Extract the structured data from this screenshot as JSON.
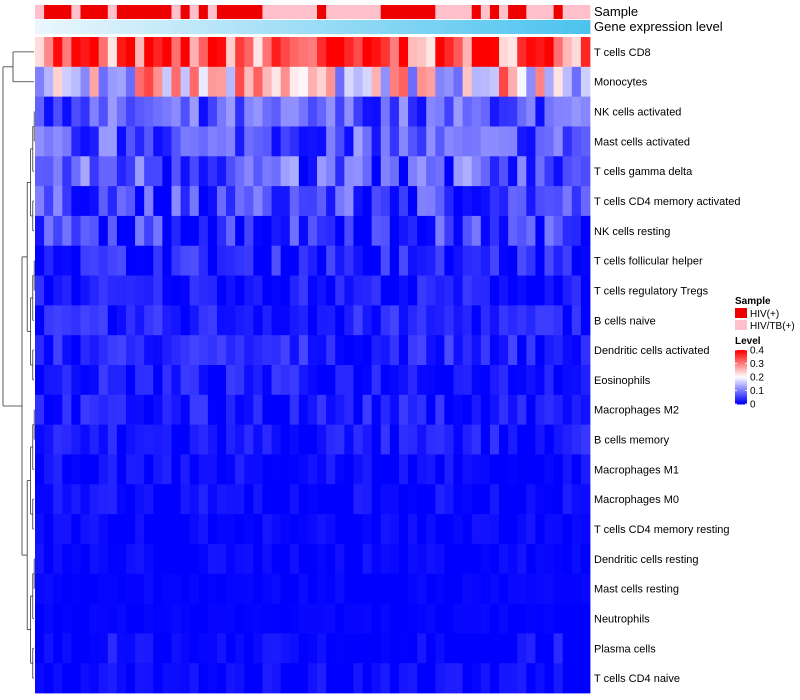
{
  "chart_data": {
    "type": "heatmap",
    "title": "",
    "annotation_tracks": [
      {
        "name": "Sample",
        "values": [
          "HIV/TB(+)",
          "HIV(+)",
          "HIV(+)",
          "HIV(+)",
          "HIV/TB(+)",
          "HIV(+)",
          "HIV(+)",
          "HIV(+)",
          "HIV/TB(+)",
          "HIV(+)",
          "HIV(+)",
          "HIV(+)",
          "HIV(+)",
          "HIV(+)",
          "HIV(+)",
          "HIV/TB(+)",
          "HIV(+)",
          "HIV/TB(+)",
          "HIV(+)",
          "HIV/TB(+)",
          "HIV(+)",
          "HIV(+)",
          "HIV(+)",
          "HIV(+)",
          "HIV(+)",
          "HIV/TB(+)",
          "HIV/TB(+)",
          "HIV/TB(+)",
          "HIV/TB(+)",
          "HIV/TB(+)",
          "HIV/TB(+)",
          "HIV(+)",
          "HIV/TB(+)",
          "HIV/TB(+)",
          "HIV/TB(+)",
          "HIV/TB(+)",
          "HIV/TB(+)",
          "HIV/TB(+)",
          "HIV(+)",
          "HIV(+)",
          "HIV(+)",
          "HIV(+)",
          "HIV(+)",
          "HIV(+)",
          "HIV/TB(+)",
          "HIV/TB(+)",
          "HIV/TB(+)",
          "HIV/TB(+)",
          "HIV(+)",
          "HIV/TB(+)",
          "HIV(+)",
          "HIV/TB(+)",
          "HIV(+)",
          "HIV(+)",
          "HIV/TB(+)",
          "HIV/TB(+)",
          "HIV/TB(+)",
          "HIV(+)",
          "HIV/TB(+)",
          "HIV/TB(+)",
          "HIV/TB(+)"
        ]
      },
      {
        "name": "Gene expression level",
        "gradient": [
          "#eaf6fc",
          "#4cc3ef"
        ]
      }
    ],
    "rows": [
      "T cells CD8",
      "Monocytes",
      "NK cells activated",
      "Mast cells activated",
      "T cells gamma delta",
      "T cells CD4 memory activated",
      "NK cells resting",
      "T cells follicular helper",
      "T cells regulatory  Tregs",
      "B cells naive",
      "Dendritic cells activated",
      "Eosinophils",
      "Macrophages M2",
      "B cells memory",
      "Macrophages M1",
      "Macrophages M0",
      "T cells CD4 memory resting",
      "Dendritic cells resting",
      "Mast cells resting",
      "Neutrophils",
      "Plasma cells",
      "T cells CD4 naive"
    ],
    "n_columns": 61,
    "row_means": [
      0.34,
      0.22,
      0.07,
      0.07,
      0.07,
      0.055,
      0.045,
      0.03,
      0.02,
      0.025,
      0.03,
      0.02,
      0.02,
      0.015,
      0.008,
      0.008,
      0.005,
      0.004,
      0.003,
      0.002,
      0.006,
      0.004
    ],
    "row_spreads": [
      0.08,
      0.09,
      0.04,
      0.04,
      0.05,
      0.04,
      0.04,
      0.025,
      0.02,
      0.02,
      0.02,
      0.02,
      0.02,
      0.02,
      0.015,
      0.015,
      0.01,
      0.01,
      0.005,
      0.004,
      0.02,
      0.015
    ],
    "color_scale": {
      "name": "Level",
      "min": 0,
      "max": 0.4,
      "ticks": [
        0.4,
        0.3,
        0.2,
        0.1,
        0
      ],
      "tick_labels": [
        "0.4",
        "0.3",
        "0.2",
        "0.1",
        "0"
      ],
      "colors": [
        "#0000ff",
        "#ffffff",
        "#ff0000"
      ]
    },
    "legend": {
      "sample_title": "Sample",
      "sample_entries": [
        {
          "label": "HIV(+)",
          "color": "#ee0000"
        },
        {
          "label": "HIV/TB(+)",
          "color": "#ffc0cb"
        }
      ]
    },
    "row_dendrogram": true
  }
}
